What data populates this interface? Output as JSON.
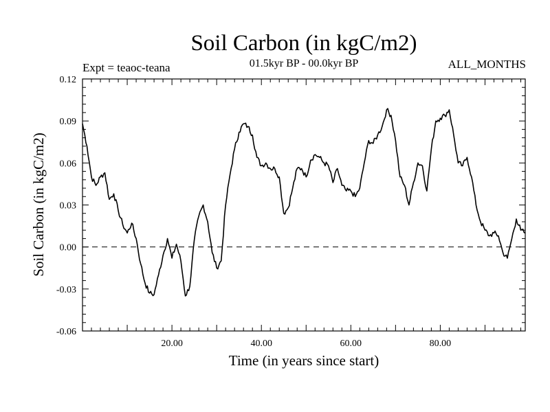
{
  "chart_data": {
    "type": "line",
    "title": "Soil Carbon (in kgC/m2)",
    "subtitle": "01.5kyr BP - 00.0kyr BP",
    "annotation_left": "Expt = teaoc-teana",
    "annotation_right": "ALL_MONTHS",
    "xlabel": "Time (in years since start)",
    "ylabel": "Soil Carbon (in kgC/m2)",
    "xlim": [
      0,
      99
    ],
    "ylim": [
      -0.06,
      0.12
    ],
    "x_ticks": [
      "20.00",
      "40.00",
      "60.00",
      "80.00"
    ],
    "y_ticks": [
      "-0.06",
      "-0.03",
      "0.00",
      "0.03",
      "0.06",
      "0.09",
      "0.12"
    ],
    "reference_line": {
      "y": 0.0,
      "style": "dashed"
    },
    "grid": false,
    "series": [
      {
        "x": [
          0,
          1,
          2,
          3,
          4,
          5,
          6,
          7,
          8,
          9,
          10,
          11,
          12,
          13,
          14,
          15,
          16,
          17,
          18,
          19,
          20,
          21,
          22,
          23,
          24,
          25,
          26,
          27,
          28,
          29,
          30,
          31,
          32,
          33,
          34,
          35,
          36,
          37,
          38,
          39,
          40,
          41,
          42,
          43,
          44,
          45,
          46,
          47,
          48,
          49,
          50,
          51,
          52,
          53,
          54,
          55,
          56,
          57,
          58,
          59,
          60,
          61,
          62,
          63,
          64,
          65,
          66,
          67,
          68,
          69,
          70,
          71,
          72,
          73,
          74,
          75,
          76,
          77,
          78,
          79,
          80,
          81,
          82,
          83,
          84,
          85,
          86,
          87,
          88,
          89,
          90,
          91,
          92,
          93,
          94,
          95,
          96,
          97,
          98,
          99
        ],
        "values": [
          0.088,
          0.072,
          0.05,
          0.044,
          0.05,
          0.053,
          0.034,
          0.038,
          0.026,
          0.016,
          0.01,
          0.017,
          0.006,
          -0.012,
          -0.026,
          -0.033,
          -0.034,
          -0.02,
          -0.006,
          0.006,
          -0.008,
          0.002,
          -0.01,
          -0.035,
          -0.028,
          0.005,
          0.022,
          0.03,
          0.018,
          -0.004,
          -0.015,
          -0.01,
          0.03,
          0.052,
          0.07,
          0.082,
          0.088,
          0.086,
          0.08,
          0.064,
          0.058,
          0.06,
          0.056,
          0.056,
          0.05,
          0.024,
          0.028,
          0.042,
          0.056,
          0.056,
          0.05,
          0.062,
          0.066,
          0.064,
          0.06,
          0.058,
          0.046,
          0.056,
          0.044,
          0.04,
          0.04,
          0.036,
          0.042,
          0.06,
          0.076,
          0.074,
          0.08,
          0.086,
          0.098,
          0.094,
          0.076,
          0.05,
          0.044,
          0.03,
          0.046,
          0.06,
          0.058,
          0.04,
          0.07,
          0.09,
          0.092,
          0.094,
          0.098,
          0.08,
          0.06,
          0.058,
          0.064,
          0.05,
          0.03,
          0.018,
          0.012,
          0.008,
          0.01,
          0.008,
          -0.004,
          -0.008,
          0.006,
          0.02,
          0.012,
          0.01
        ]
      }
    ]
  }
}
